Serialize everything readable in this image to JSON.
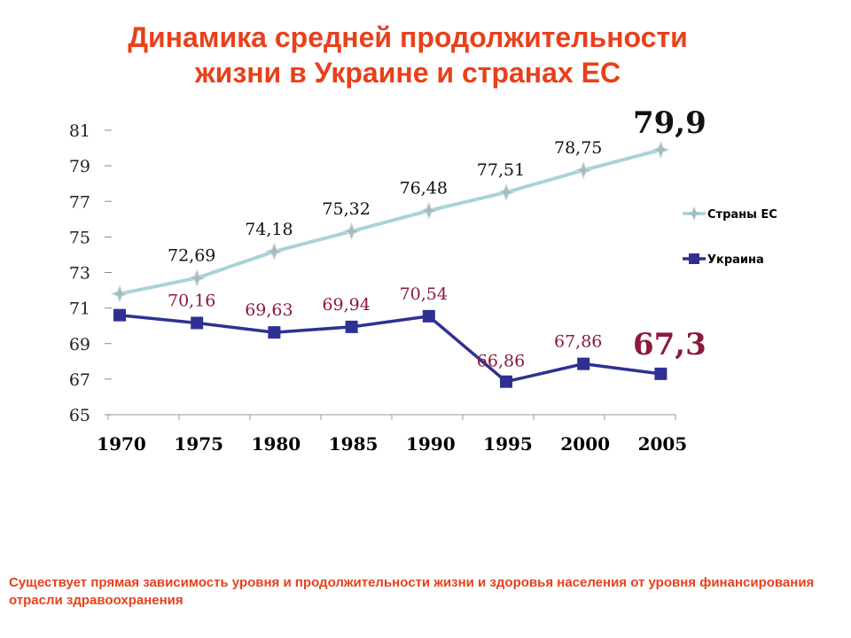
{
  "title": {
    "line1": "Динамика средней продолжительности",
    "line2": "жизни  в Украине и странах ЕС"
  },
  "chart_data": {
    "type": "line",
    "x": [
      "1970",
      "1975",
      "1980",
      "1985",
      "1990",
      "1995",
      "2000",
      "2005"
    ],
    "ylim": [
      65,
      81
    ],
    "yticks": [
      "65",
      "67",
      "69",
      "71",
      "73",
      "75",
      "77",
      "79",
      "81"
    ],
    "legend_position": "right",
    "grid": false,
    "series": [
      {
        "name": "Страны ЕС",
        "color": "#a9d3d9",
        "marker": "star",
        "values": [
          71.8,
          72.69,
          74.18,
          75.32,
          76.48,
          77.51,
          78.75,
          79.9
        ],
        "labels": [
          "",
          "72,69",
          "74,18",
          "75,32",
          "76,48",
          "77,51",
          "78,75",
          "79,9"
        ],
        "label_color": "#111111"
      },
      {
        "name": "Украина",
        "color": "#2e3192",
        "marker": "square",
        "values": [
          70.6,
          70.16,
          69.63,
          69.94,
          70.54,
          66.86,
          67.86,
          67.3
        ],
        "labels": [
          "",
          "70,16",
          "69,63",
          "69,94",
          "70,54",
          "66,86",
          "67,86",
          "67,3"
        ],
        "label_color": "#8b1a3a"
      }
    ]
  },
  "footnote": "Существует прямая зависимость уровня и продолжительности жизни и здоровья населения от уровня финансирования отрасли здравоохранения"
}
